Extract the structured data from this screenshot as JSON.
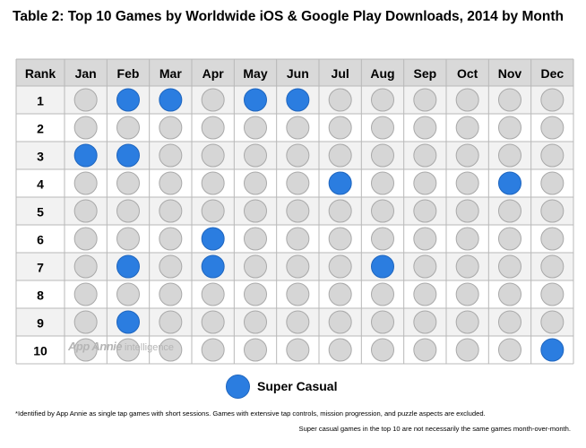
{
  "title": "Table 2: Top 10 Games by Worldwide iOS & Google Play Downloads, 2014 by Month",
  "header": {
    "rank_label": "Rank",
    "months": [
      "Jan",
      "Feb",
      "Mar",
      "Apr",
      "May",
      "Jun",
      "Jul",
      "Aug",
      "Sep",
      "Oct",
      "Nov",
      "Dec"
    ]
  },
  "chart_data": {
    "type": "table",
    "title": "Table 2: Top 10 Games by Worldwide iOS & Google Play Downloads, 2014 by Month",
    "columns": [
      "Jan",
      "Feb",
      "Mar",
      "Apr",
      "May",
      "Jun",
      "Jul",
      "Aug",
      "Sep",
      "Oct",
      "Nov",
      "Dec"
    ],
    "ranks": [
      1,
      2,
      3,
      4,
      5,
      6,
      7,
      8,
      9,
      10
    ],
    "super_casual": [
      [
        0,
        1,
        1,
        0,
        1,
        1,
        0,
        0,
        0,
        0,
        0,
        0
      ],
      [
        0,
        0,
        0,
        0,
        0,
        0,
        0,
        0,
        0,
        0,
        0,
        0
      ],
      [
        1,
        1,
        0,
        0,
        0,
        0,
        0,
        0,
        0,
        0,
        0,
        0
      ],
      [
        0,
        0,
        0,
        0,
        0,
        0,
        1,
        0,
        0,
        0,
        1,
        0
      ],
      [
        0,
        0,
        0,
        0,
        0,
        0,
        0,
        0,
        0,
        0,
        0,
        0
      ],
      [
        0,
        0,
        0,
        1,
        0,
        0,
        0,
        0,
        0,
        0,
        0,
        0
      ],
      [
        0,
        1,
        0,
        1,
        0,
        0,
        0,
        1,
        0,
        0,
        0,
        0
      ],
      [
        0,
        0,
        0,
        0,
        0,
        0,
        0,
        0,
        0,
        0,
        0,
        0
      ],
      [
        0,
        1,
        0,
        0,
        0,
        0,
        0,
        0,
        0,
        0,
        0,
        0
      ],
      [
        0,
        0,
        0,
        0,
        0,
        0,
        0,
        0,
        0,
        0,
        0,
        1
      ]
    ],
    "legend": "Super Casual"
  },
  "colors": {
    "super_casual": "#2b7de0",
    "other": "#d6d6d6",
    "header_bg": "#d9d9d9",
    "stripe_bg": "#f2f2f2"
  },
  "watermark": {
    "brand": "App Annie",
    "suffix": "intelligence"
  },
  "legend": {
    "label": "Super Casual"
  },
  "footnotes": {
    "line1": "*Identified by App Annie as single tap games with short sessions. Games with extensive tap controls, mission progression, and puzzle aspects are excluded.",
    "line2": "Super casual games in the top 10 are not necessarily the same games month-over-month."
  }
}
